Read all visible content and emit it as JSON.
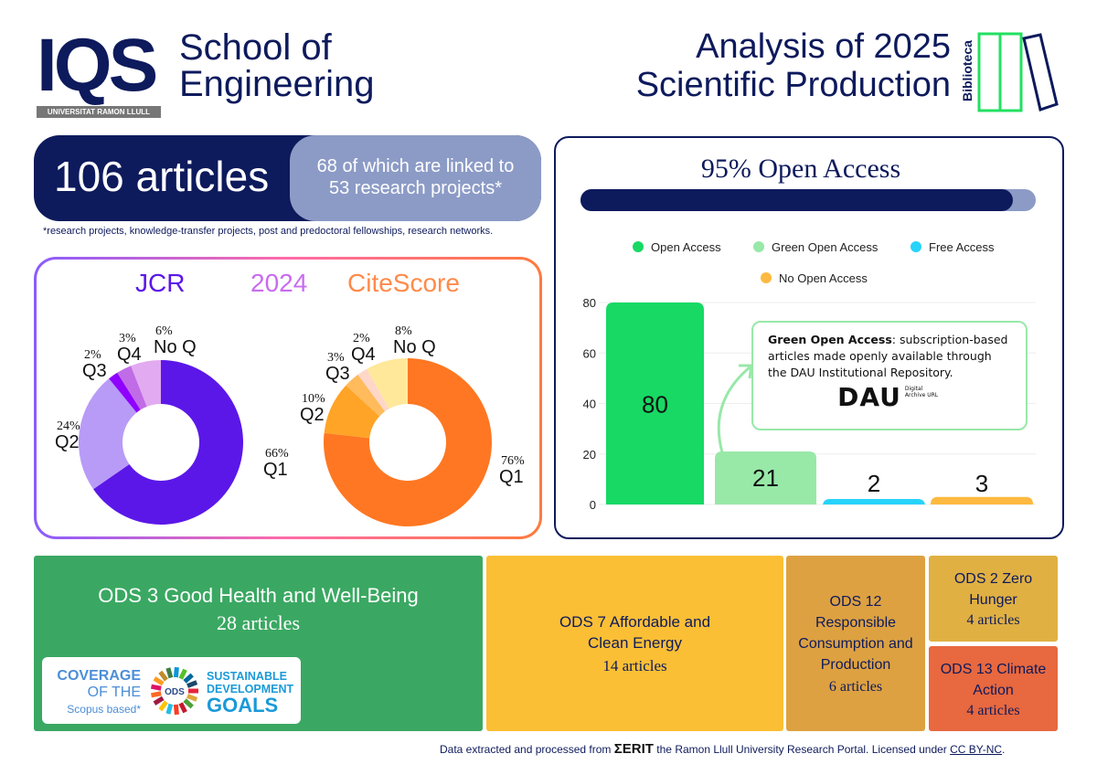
{
  "header": {
    "logo_text": "IQS",
    "university": "UNIVERSITAT RAMON LLULL",
    "school_line1": "School of",
    "school_line2": "Engineering",
    "title_line1": "Analysis of 2025",
    "title_line2": "Scientific Production",
    "library_label": "Biblioteca"
  },
  "summary": {
    "articles": "106 articles",
    "linked_line1": "68 of which are linked to",
    "linked_line2": "53 research projects*",
    "footnote": "*research projects, knowledge-transfer projects, post and predoctoral fellowships, research networks."
  },
  "quartiles": {
    "jcr_label": "JCR",
    "year_label": "2024",
    "citescore_label": "CiteScore"
  },
  "open_access": {
    "title": "95% Open Access",
    "percent": 95,
    "note_bold": "Green Open Access",
    "note_text": ": subscription-based articles made openly available through the DAU Institutional Repository.",
    "dau_logo": "DAU",
    "dau_caption": "Digital Archive URL"
  },
  "chart_data": [
    {
      "type": "pie",
      "title": "JCR",
      "categories": [
        "Q1",
        "Q2",
        "Q3",
        "Q4",
        "No Q"
      ],
      "values": [
        66,
        24,
        2,
        3,
        6
      ],
      "labels": [
        "66%",
        "24%",
        "2%",
        "3%",
        "6%"
      ],
      "colors": [
        "#5b17e8",
        "#b89bf7",
        "#8f00ff",
        "#c06ce6",
        "#e2aaf0"
      ]
    },
    {
      "type": "pie",
      "title": "CiteScore",
      "categories": [
        "Q1",
        "Q2",
        "Q3",
        "Q4",
        "No Q"
      ],
      "values": [
        76,
        10,
        3,
        2,
        8
      ],
      "labels": [
        "76%",
        "10%",
        "3%",
        "2%",
        "8%"
      ],
      "colors": [
        "#ff7722",
        "#ffa426",
        "#ffbb5c",
        "#ffd7c8",
        "#ffe89a"
      ]
    },
    {
      "type": "bar",
      "categories": [
        "Open Access",
        "Green Open Access",
        "Free Access",
        "No Open Access"
      ],
      "values": [
        80,
        21,
        2,
        3
      ],
      "colors": [
        "#17d964",
        "#98e8a8",
        "#27d3fb",
        "#fdb940"
      ],
      "ylim": [
        0,
        80
      ],
      "yticks": [
        "0",
        "20",
        "40",
        "60",
        "80"
      ],
      "grid": true,
      "legend": "top"
    }
  ],
  "ods": [
    {
      "title": "ODS 3 Good Health and Well-Being",
      "count": "28 articles",
      "color": "#3aa862"
    },
    {
      "title": "ODS 7 Affordable and Clean Energy",
      "count": "14 articles",
      "color": "#fbbf35"
    },
    {
      "title": "ODS 12 Responsible Consumption and Production",
      "count": "6 articles",
      "color": "#dda141"
    },
    {
      "title": "ODS 2 Zero Hunger",
      "count": "4 articles",
      "color": "#e0b042"
    },
    {
      "title": "ODS 13 Climate Action",
      "count": "4 articles",
      "color": "#e8683f"
    }
  ],
  "coverage": {
    "line1": "COVERAGE",
    "line2": "OF THE",
    "line3": "Scopus based*",
    "wheel": "ODS",
    "sdg1": "SUSTAINABLE",
    "sdg2": "DEVELOPMENT",
    "sdg3": "GOALS"
  },
  "footer": {
    "prefix": "Data extracted and processed from",
    "brand": "ΣERIT",
    "suffix": "the Ramon Llull University Research Portal. Licensed under",
    "license": "CC BY-NC",
    "end": "."
  }
}
